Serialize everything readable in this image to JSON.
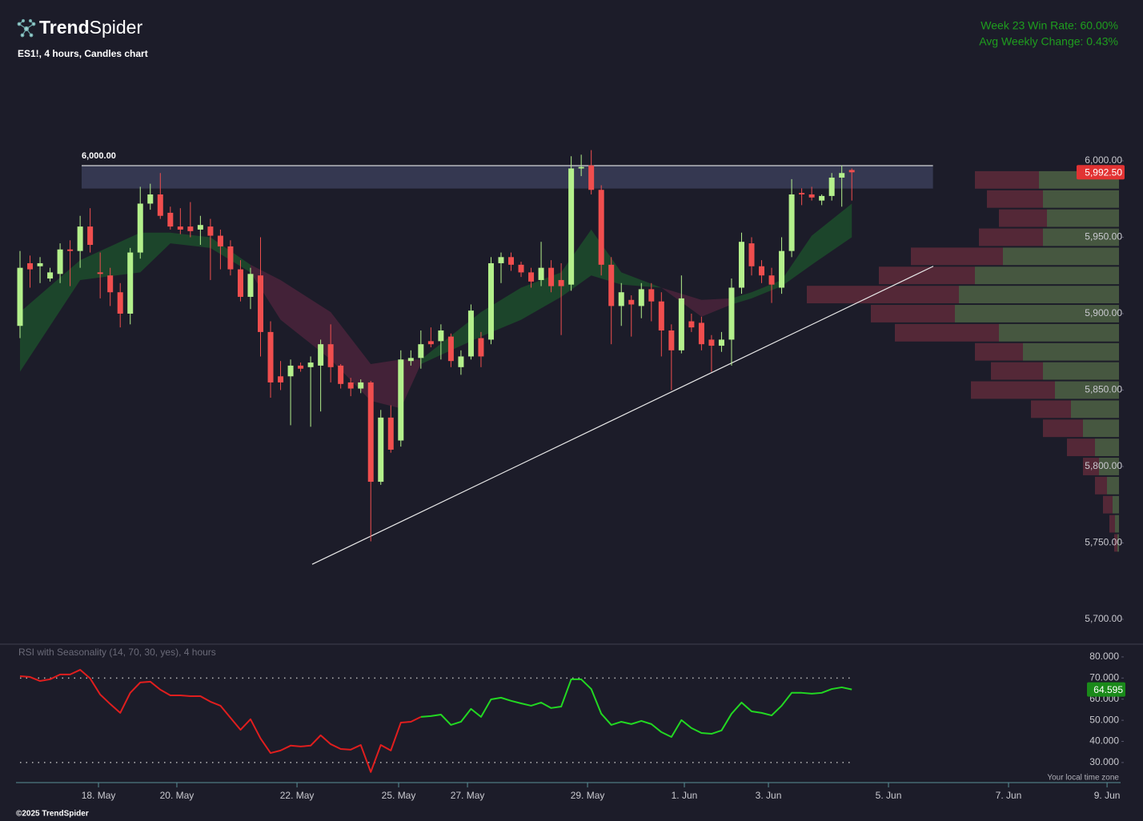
{
  "header": {
    "logo_bold": "Trend",
    "logo_light": "Spider",
    "subtitle": "ES1!, 4 hours, Candles chart"
  },
  "stats": [
    "Week 23 Win Rate: 60.00%",
    "Avg Weekly Change: 0.43%"
  ],
  "timezone_note": "Your local time zone",
  "footer": "©2025 TrendSpider",
  "chart_data": [
    {
      "type": "candlestick",
      "up_color": "#b4f08c",
      "down_color": "#f04e4e",
      "xlim": [
        -0.4,
        109.82
      ],
      "ylim": [
        5684.8,
        6058.1
      ],
      "yticks": [
        {
          "value": 5700,
          "label": "5,700.00"
        },
        {
          "value": 5750,
          "label": "5,750.00"
        },
        {
          "value": 5800,
          "label": "5,800.00"
        },
        {
          "value": 5850,
          "label": "5,850.00"
        },
        {
          "value": 5900,
          "label": "5,900.00"
        },
        {
          "value": 5950,
          "label": "5,950.00"
        },
        {
          "value": 6000,
          "label": "6,000.00"
        }
      ],
      "open": [
        5892,
        5933,
        5931,
        5923,
        5926,
        5942,
        5941,
        5957,
        5927,
        5925,
        5914,
        5900,
        5940,
        5972,
        5978,
        5966,
        5957,
        5957,
        5955,
        5957,
        5951,
        5944,
        5929,
        5911,
        5925,
        5888,
        5859,
        5859,
        5866,
        5865,
        5866,
        5880,
        5866,
        5855,
        5851,
        5855,
        5790,
        5832,
        5817,
        5869,
        5871,
        5882,
        5882,
        5885,
        5865,
        5872,
        5884,
        5883,
        5933,
        5937,
        5932,
        5927,
        5922,
        5930,
        5922,
        5919,
        5995,
        5997,
        5981,
        5932,
        5905,
        5909,
        5905,
        5916,
        5908,
        5889,
        5876,
        5895,
        5894,
        5883,
        5879,
        5883,
        5917,
        5946,
        5931,
        5925,
        5917,
        5941,
        5979,
        5978,
        5974,
        5977,
        5989,
        5994
      ],
      "high": [
        5941,
        5938,
        5937,
        5930,
        5946,
        5948,
        5964,
        5969,
        5940,
        5930,
        5920,
        5943,
        5983,
        5985,
        5992,
        5970,
        5969,
        5973,
        5964,
        5962,
        5955,
        5948,
        5935,
        5930,
        5950,
        5895,
        5869,
        5870,
        5868,
        5872,
        5883,
        5893,
        5867,
        5858,
        5857,
        5856,
        5837,
        5840,
        5876,
        5876,
        5889,
        5891,
        5893,
        5887,
        5876,
        5906,
        5888,
        5937,
        5940,
        5940,
        5934,
        5930,
        5947,
        5935,
        5933,
        6003,
        6004,
        6007,
        5984,
        5937,
        5920,
        5912,
        5920,
        5920,
        5914,
        5893,
        5925,
        5900,
        5898,
        5886,
        5888,
        5923,
        5953,
        5950,
        5935,
        5930,
        5950,
        5988,
        5982,
        5983,
        5978,
        5992,
        5997,
        5995
      ],
      "low": [
        5884,
        5917,
        5920,
        5921,
        5920,
        5918,
        5930,
        5940,
        5910,
        5905,
        5891,
        5893,
        5936,
        5968,
        5962,
        5955,
        5952,
        5950,
        5945,
        5922,
        5929,
        5925,
        5908,
        5903,
        5872,
        5845,
        5850,
        5827,
        5862,
        5826,
        5836,
        5855,
        5851,
        5846,
        5848,
        5751,
        5788,
        5809,
        5813,
        5866,
        5864,
        5878,
        5870,
        5865,
        5860,
        5870,
        5865,
        5880,
        5920,
        5928,
        5924,
        5917,
        5918,
        5914,
        5886,
        5915,
        5990,
        5978,
        5925,
        5880,
        5892,
        5885,
        5897,
        5895,
        5872,
        5850,
        5874,
        5888,
        5876,
        5862,
        5875,
        5866,
        5913,
        5925,
        5920,
        5907,
        5913,
        5937,
        5971,
        5974,
        5971,
        5974,
        5970,
        5974
      ],
      "close": [
        5930,
        5929,
        5933,
        5927,
        5942,
        5941,
        5957,
        5945,
        5926,
        5914,
        5900,
        5940,
        5972,
        5978,
        5964,
        5957,
        5955,
        5954,
        5958,
        5951,
        5944,
        5929,
        5911,
        5926,
        5888,
        5855,
        5855,
        5866,
        5864,
        5868,
        5880,
        5865,
        5854,
        5851,
        5855,
        5790,
        5832,
        5811,
        5870,
        5871,
        5880,
        5880,
        5889,
        5869,
        5872,
        5902,
        5872,
        5933,
        5937,
        5932,
        5927,
        5921,
        5930,
        5918,
        5918,
        5995,
        5996,
        5981,
        5932,
        5905,
        5914,
        5906,
        5916,
        5908,
        5889,
        5876,
        5910,
        5891,
        5880,
        5879,
        5883,
        5917,
        5947,
        5931,
        5925,
        5919,
        5941,
        5978,
        5978,
        5976,
        5977,
        5989,
        5992,
        5992.5
      ],
      "clouds": [
        {
          "color": "#1d4a2b",
          "x": [
            0,
            6,
            12,
            15,
            19,
            23
          ],
          "upper": [
            5901,
            5935,
            5953,
            5953,
            5950,
            5932
          ],
          "lower": [
            5862,
            5922,
            5927,
            5946,
            5943,
            5927
          ]
        },
        {
          "color": "#48243a",
          "x": [
            23,
            26,
            31,
            35,
            38,
            40
          ],
          "upper": [
            5932,
            5922,
            5901,
            5867,
            5870,
            5870
          ],
          "lower": [
            5927,
            5896,
            5870,
            5843,
            5838,
            5867
          ]
        },
        {
          "color": "#1d4a2b",
          "x": [
            40,
            46,
            50,
            54,
            57,
            60,
            64
          ],
          "upper": [
            5870,
            5901,
            5917,
            5927,
            5955,
            5927,
            5917
          ],
          "lower": [
            5867,
            5885,
            5896,
            5911,
            5925,
            5919,
            5917
          ]
        },
        {
          "color": "#48243a",
          "x": [
            64,
            68,
            71
          ],
          "upper": [
            5917,
            5909,
            5910
          ],
          "lower": [
            5917,
            5898,
            5906
          ]
        },
        {
          "color": "#1d4a2b",
          "x": [
            71,
            73,
            76,
            79,
            83
          ],
          "upper": [
            5910,
            5914,
            5922,
            5951,
            5972
          ],
          "lower": [
            5906,
            5910,
            5918,
            5932,
            5950
          ]
        }
      ],
      "zone": {
        "label": "6,000.00",
        "top": 6000,
        "bottom": 5985,
        "x": [
          6.15,
          91.1
        ],
        "color": "#3a3d58"
      },
      "trendline": {
        "x": [
          29.15,
          91.13
        ],
        "y": [
          5736,
          5931
        ],
        "color": "#e8e8e8"
      },
      "volume_profile": {
        "up_color": "#4b5e42",
        "down_color": "#5b2a38",
        "levels": [
          5750,
          5762.5,
          5775,
          5787.5,
          5800,
          5812.5,
          5825,
          5837.5,
          5850,
          5862.5,
          5875,
          5887.5,
          5900,
          5912.5,
          5925,
          5937.5,
          5950,
          5962.5,
          5975,
          5987.5
        ],
        "up": [
          2,
          5,
          8,
          15,
          25,
          30,
          45,
          60,
          80,
          95,
          120,
          150,
          205,
          200,
          180,
          145,
          95,
          90,
          95,
          100
        ],
        "down": [
          4,
          7,
          12,
          15,
          20,
          35,
          50,
          50,
          105,
          65,
          60,
          130,
          105,
          190,
          120,
          115,
          80,
          60,
          70,
          80
        ]
      },
      "last_price": {
        "value": 5992.5,
        "label": "5,992.50",
        "color": "#e23333"
      }
    },
    {
      "type": "line",
      "title": "RSI with Seasonality (14, 70, 30, yes), 4 hours",
      "xlim": [
        -0.4,
        109.82
      ],
      "ylim": [
        20.5,
        84.9
      ],
      "yticks": [
        {
          "value": 30,
          "label": "30.000"
        },
        {
          "value": 40,
          "label": "40.000"
        },
        {
          "value": 50,
          "label": "50.000"
        },
        {
          "value": 60,
          "label": "60.000"
        },
        {
          "value": 70,
          "label": "70.000"
        },
        {
          "value": 80,
          "label": "80.000"
        }
      ],
      "xticks": [
        {
          "value": 7.83,
          "label": "18. May"
        },
        {
          "value": 15.65,
          "label": "20. May"
        },
        {
          "value": 27.64,
          "label": "22. May"
        },
        {
          "value": 37.78,
          "label": "25. May"
        },
        {
          "value": 44.65,
          "label": "27. May"
        },
        {
          "value": 56.63,
          "label": "29. May"
        },
        {
          "value": 66.29,
          "label": "1. Jun"
        },
        {
          "value": 74.68,
          "label": "3. Jun"
        },
        {
          "value": 86.66,
          "label": "5. Jun"
        },
        {
          "value": 98.64,
          "label": "7. Jun"
        },
        {
          "value": 108.47,
          "label": "9. Jun"
        }
      ],
      "levels": [
        70,
        30
      ],
      "series": [
        {
          "color": "#e01e1e",
          "values": [
            70.9,
            70.5,
            68.6,
            69.4,
            71.7,
            71.7,
            73.9,
            69.8,
            62.2,
            57.7,
            53.5,
            63.0,
            67.9,
            68.3,
            64.5,
            61.8,
            61.8,
            61.4,
            61.4,
            58.8,
            56.9,
            51.2,
            45.5,
            50.5,
            41.4,
            34.5,
            35.7,
            38.0,
            37.6,
            38.0,
            42.9,
            38.7,
            36.4,
            36.1,
            38.3,
            25.5,
            38.3,
            35.7,
            48.9,
            49.3,
            51.6,
            null,
            null,
            null,
            null,
            null,
            null,
            null,
            null,
            null,
            null,
            null,
            null,
            null,
            null,
            null,
            null,
            null,
            null,
            null,
            null,
            null,
            null,
            null,
            null,
            null,
            null,
            null,
            null,
            null,
            null,
            null,
            null,
            null,
            null,
            null,
            null,
            null,
            null,
            null,
            null,
            null,
            null,
            null
          ]
        },
        {
          "color": "#22d822",
          "values": [
            null,
            null,
            null,
            null,
            null,
            null,
            null,
            null,
            null,
            null,
            null,
            null,
            null,
            null,
            null,
            null,
            null,
            null,
            null,
            null,
            null,
            null,
            null,
            null,
            null,
            null,
            null,
            null,
            null,
            null,
            null,
            null,
            null,
            null,
            null,
            null,
            null,
            null,
            null,
            null,
            51.6,
            52.0,
            52.7,
            47.8,
            49.3,
            55.4,
            51.6,
            59.9,
            60.7,
            59.2,
            58.0,
            56.9,
            58.4,
            55.8,
            56.5,
            69.4,
            69.4,
            64.8,
            53.1,
            47.8,
            49.3,
            48.2,
            49.7,
            48.2,
            44.4,
            42.1,
            50.1,
            46.3,
            44.0,
            43.6,
            45.2,
            53.1,
            58.4,
            54.2,
            53.5,
            52.3,
            56.9,
            63.0,
            63.0,
            62.6,
            63.0,
            64.8,
            65.6,
            64.595
          ]
        }
      ],
      "last_value": {
        "value": 64.595,
        "label": "64.595",
        "color": "#1a8a1a"
      }
    }
  ]
}
